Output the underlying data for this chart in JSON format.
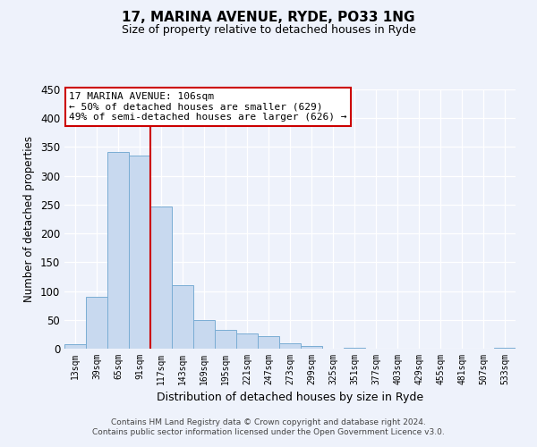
{
  "title": "17, MARINA AVENUE, RYDE, PO33 1NG",
  "subtitle": "Size of property relative to detached houses in Ryde",
  "xlabel": "Distribution of detached houses by size in Ryde",
  "ylabel": "Number of detached properties",
  "bar_color": "#c8d9ef",
  "bar_edge_color": "#7aadd4",
  "bin_labels": [
    "13sqm",
    "39sqm",
    "65sqm",
    "91sqm",
    "117sqm",
    "143sqm",
    "169sqm",
    "195sqm",
    "221sqm",
    "247sqm",
    "273sqm",
    "299sqm",
    "325sqm",
    "351sqm",
    "377sqm",
    "403sqm",
    "429sqm",
    "455sqm",
    "481sqm",
    "507sqm",
    "533sqm"
  ],
  "bar_values": [
    7,
    90,
    342,
    335,
    246,
    110,
    50,
    33,
    26,
    22,
    10,
    5,
    0,
    2,
    0,
    0,
    0,
    0,
    0,
    0,
    1
  ],
  "ylim": [
    0,
    450
  ],
  "yticks": [
    0,
    50,
    100,
    150,
    200,
    250,
    300,
    350,
    400,
    450
  ],
  "property_line_x": 3.5,
  "annotation_title": "17 MARINA AVENUE: 106sqm",
  "annotation_line1": "← 50% of detached houses are smaller (629)",
  "annotation_line2": "49% of semi-detached houses are larger (626) →",
  "annotation_box_facecolor": "#ffffff",
  "annotation_box_edgecolor": "#cc0000",
  "property_line_color": "#cc0000",
  "footer_line1": "Contains HM Land Registry data © Crown copyright and database right 2024.",
  "footer_line2": "Contains public sector information licensed under the Open Government Licence v3.0.",
  "background_color": "#eef2fb"
}
